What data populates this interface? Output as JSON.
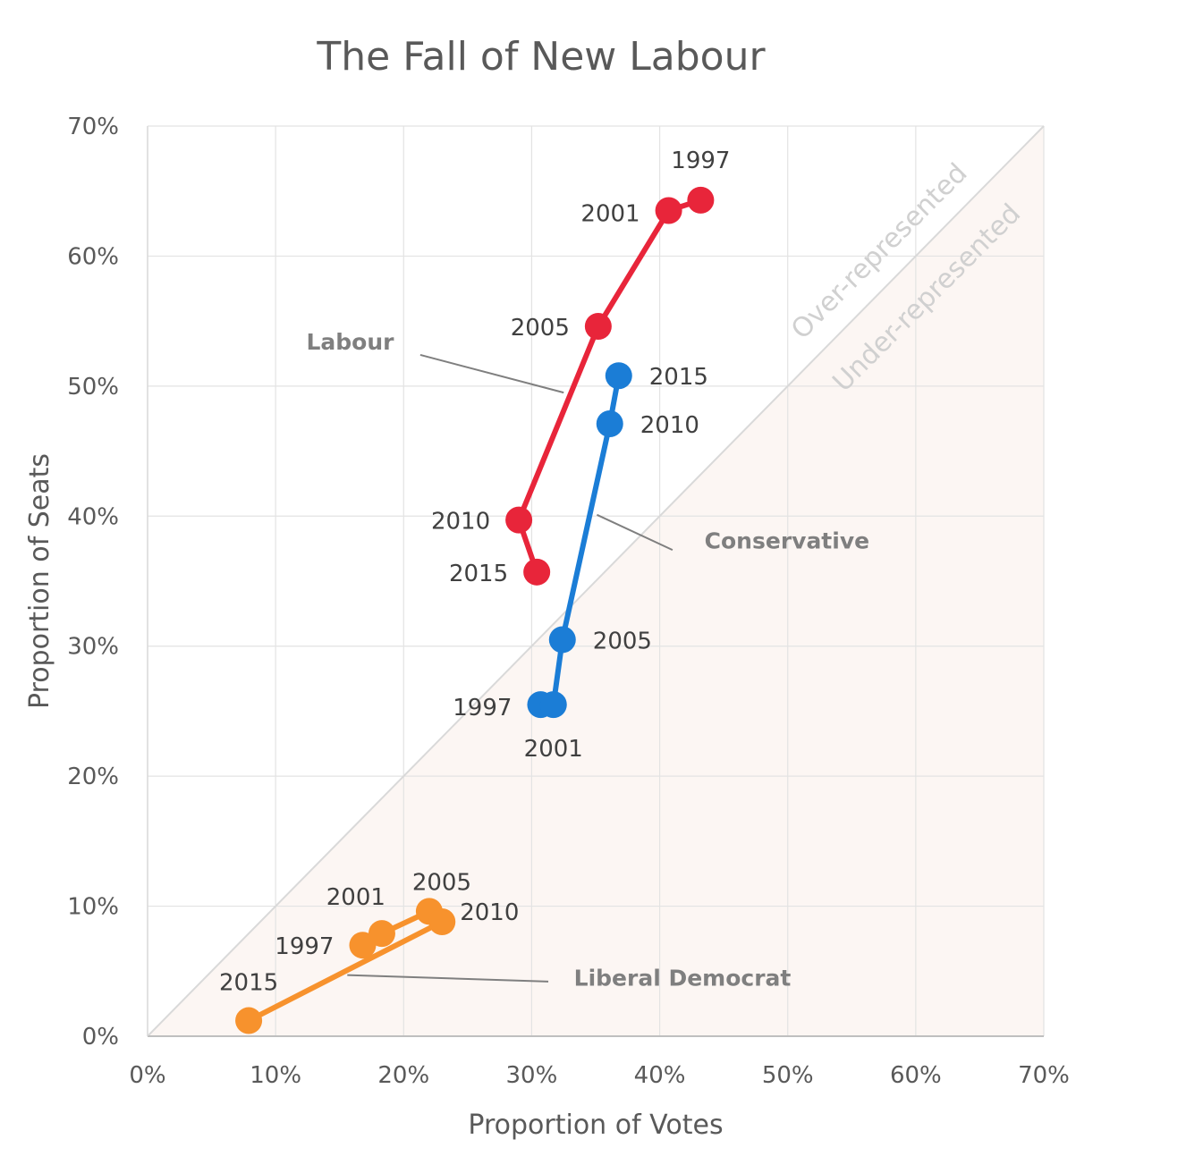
{
  "chart_data": {
    "type": "line",
    "title": "The Fall of New Labour",
    "xlabel": "Proportion of Votes",
    "ylabel": "Proportion of Seats",
    "xlim": [
      0,
      70
    ],
    "ylim": [
      0,
      70
    ],
    "x_ticks": [
      0,
      10,
      20,
      30,
      40,
      50,
      60,
      70
    ],
    "y_ticks": [
      0,
      10,
      20,
      30,
      40,
      50,
      60,
      70
    ],
    "tick_suffix": "%",
    "grid": true,
    "region_labels": {
      "over": "Over-represented",
      "under": "Under-represented"
    },
    "series": [
      {
        "name": "Labour",
        "color": "#e8253a",
        "points": [
          {
            "label": "1997",
            "x": 43.2,
            "y": 64.3
          },
          {
            "label": "2001",
            "x": 40.7,
            "y": 63.5
          },
          {
            "label": "2005",
            "x": 35.2,
            "y": 54.6
          },
          {
            "label": "2010",
            "x": 29.0,
            "y": 39.7
          },
          {
            "label": "2015",
            "x": 30.4,
            "y": 35.7
          }
        ]
      },
      {
        "name": "Conservative",
        "color": "#1b7dd6",
        "points": [
          {
            "label": "1997",
            "x": 30.7,
            "y": 25.5
          },
          {
            "label": "2001",
            "x": 31.7,
            "y": 25.5
          },
          {
            "label": "2005",
            "x": 32.4,
            "y": 30.5
          },
          {
            "label": "2010",
            "x": 36.1,
            "y": 47.1
          },
          {
            "label": "2015",
            "x": 36.8,
            "y": 50.8
          }
        ]
      },
      {
        "name": "Liberal Democrat",
        "color": "#f7922d",
        "points": [
          {
            "label": "1997",
            "x": 16.8,
            "y": 7.0
          },
          {
            "label": "2001",
            "x": 18.3,
            "y": 7.9
          },
          {
            "label": "2005",
            "x": 22.0,
            "y": 9.6
          },
          {
            "label": "2010",
            "x": 23.0,
            "y": 8.8
          },
          {
            "label": "2015",
            "x": 7.9,
            "y": 1.2
          }
        ]
      }
    ]
  }
}
